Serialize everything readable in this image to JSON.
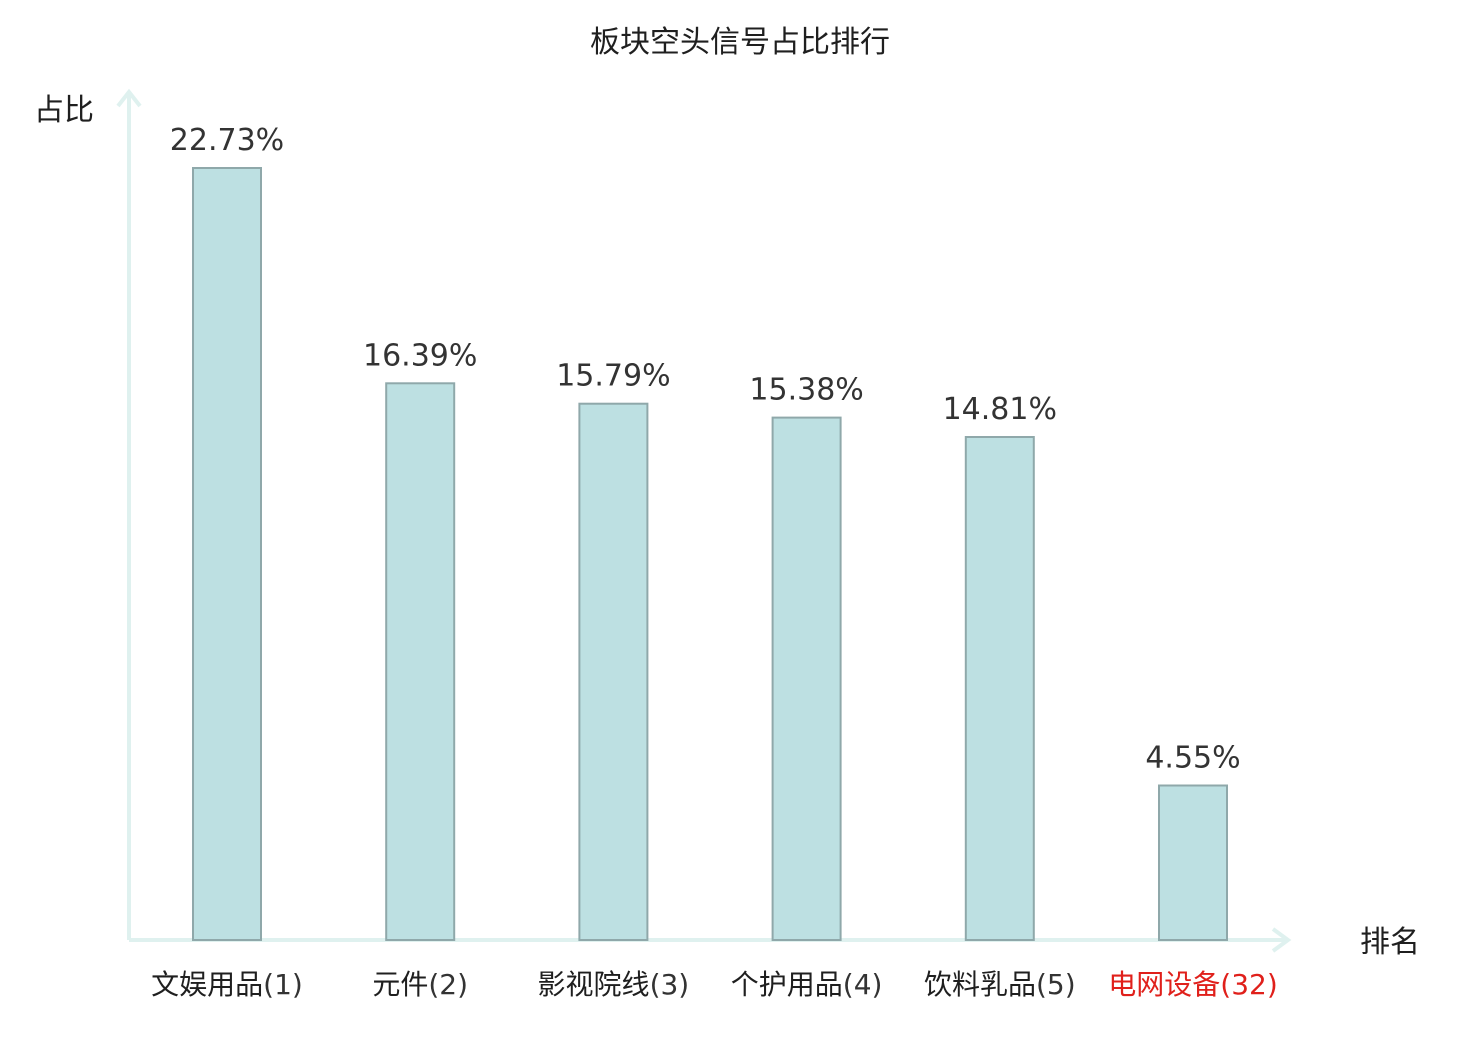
{
  "chart_data": {
    "type": "bar",
    "title": "板块空头信号占比排行",
    "xlabel": "排名",
    "ylabel": "占比",
    "categories": [
      {
        "name": "文娱用品",
        "rank": "(1)"
      },
      {
        "name": "元件",
        "rank": "(2)"
      },
      {
        "name": "影视院线",
        "rank": "(3)"
      },
      {
        "name": "个护用品",
        "rank": "(4)"
      },
      {
        "name": "饮料乳品",
        "rank": "(5)"
      },
      {
        "name": "电网设备",
        "rank": "(32)"
      }
    ],
    "values": [
      22.73,
      16.39,
      15.79,
      15.38,
      14.81,
      4.55
    ],
    "value_labels": [
      "22.73%",
      "16.39%",
      "15.79%",
      "15.38%",
      "14.81%",
      "4.55%"
    ],
    "highlight_index": 5,
    "ylim": [
      0,
      25
    ],
    "grid": false,
    "colors": {
      "bar_fill": "#bde0e2",
      "bar_stroke": "#8fa8aa",
      "axis": "#dff1ef",
      "text": "#1f1f1f",
      "highlight": "#e0201b"
    }
  }
}
